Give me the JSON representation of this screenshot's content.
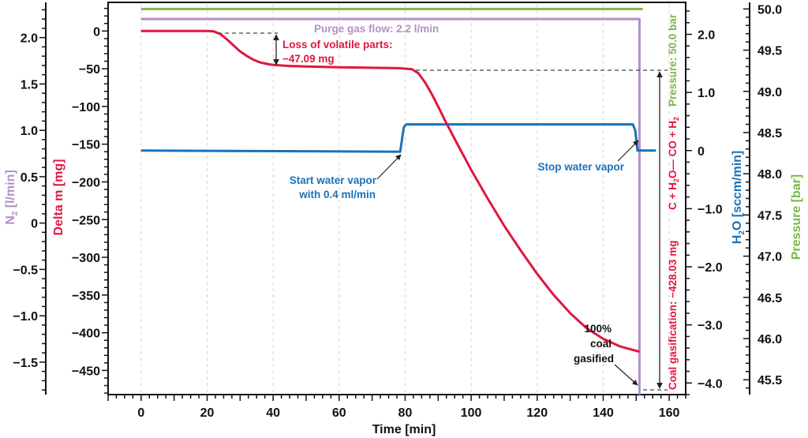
{
  "chart_data": {
    "type": "line",
    "title": "",
    "x": {
      "label": "Time [min]",
      "range": [
        -10,
        165
      ],
      "ticks": [
        0,
        20,
        40,
        60,
        80,
        100,
        120,
        140,
        160
      ],
      "tick_labels": [
        "0",
        "20",
        "40",
        "60",
        "80",
        "100",
        "120",
        "140",
        "160"
      ],
      "minor_step": 2.5
    },
    "y_axes": {
      "n2": {
        "label_main": "N",
        "label_sub": "2",
        "label_rest": " [l/min]",
        "range": [
          -1.85,
          2.38
        ],
        "ticks": [
          2.0,
          1.5,
          1.0,
          0.5,
          0,
          -0.5,
          -1.0,
          -1.5
        ],
        "tick_labels": [
          "2.0",
          "1.5",
          "1.0",
          "0.5",
          "0",
          "−0.5",
          "−1.0",
          "−1.5"
        ],
        "color": "#b48fc8"
      },
      "delta_m": {
        "label": "Delta m [mg]",
        "range": [
          -482,
          38
        ],
        "ticks": [
          0,
          -50,
          -100,
          -150,
          -200,
          -250,
          -300,
          -350,
          -400,
          -450
        ],
        "tick_labels": [
          "0",
          "−50",
          "−100",
          "−150",
          "−200",
          "−250",
          "−300",
          "−350",
          "−400",
          "−450"
        ],
        "color": "#e0173f"
      },
      "h2o": {
        "label_main": "H",
        "label_sub": "2",
        "label_rest": "O [sccm/min]",
        "range": [
          -4.2,
          2.55
        ],
        "ticks": [
          2.0,
          1.0,
          0,
          -1.0,
          -2.0,
          -3.0,
          -4.0
        ],
        "tick_labels": [
          "2.0",
          "1.0",
          "0",
          "−1.0",
          "−2.0",
          "−3.0",
          "−4.0"
        ],
        "color": "#1b72b8"
      },
      "pressure": {
        "label": "Pressure [bar]",
        "range": [
          45.32,
          50.08
        ],
        "ticks": [
          50.0,
          49.5,
          49.0,
          48.5,
          48.0,
          47.5,
          47.0,
          46.5,
          46.0,
          45.5
        ],
        "tick_labels": [
          "50.0",
          "49.5",
          "49.0",
          "48.5",
          "48.0",
          "47.5",
          "47.0",
          "46.5",
          "46.0",
          "45.5"
        ],
        "color": "#7ab648"
      }
    },
    "series": [
      {
        "name": "Pressure",
        "axis": "pressure",
        "color": "#7ab648",
        "points": [
          [
            0,
            50.0
          ],
          [
            152,
            50.0
          ]
        ]
      },
      {
        "name": "N2 purge gas flow",
        "axis": "n2",
        "color": "#b48fc8",
        "points": [
          [
            0,
            2.2
          ],
          [
            151,
            2.2
          ],
          [
            151,
            -1.85
          ]
        ]
      },
      {
        "name": "Delta m",
        "axis": "delta_m",
        "color": "#e0173f",
        "points": [
          [
            0,
            0
          ],
          [
            10,
            0
          ],
          [
            20,
            0
          ],
          [
            22,
            -0.5
          ],
          [
            24,
            -4
          ],
          [
            26,
            -11
          ],
          [
            28,
            -19
          ],
          [
            30,
            -27
          ],
          [
            32,
            -33
          ],
          [
            34,
            -38
          ],
          [
            36,
            -41.5
          ],
          [
            38,
            -43.5
          ],
          [
            40,
            -45
          ],
          [
            45,
            -46.3
          ],
          [
            50,
            -47
          ],
          [
            60,
            -48
          ],
          [
            70,
            -48.7
          ],
          [
            78,
            -49.3
          ],
          [
            82,
            -50.5
          ],
          [
            84,
            -56
          ],
          [
            86,
            -68
          ],
          [
            88,
            -83
          ],
          [
            90,
            -100
          ],
          [
            92,
            -118
          ],
          [
            95,
            -143
          ],
          [
            100,
            -184
          ],
          [
            105,
            -222
          ],
          [
            110,
            -258
          ],
          [
            115,
            -291
          ],
          [
            120,
            -322
          ],
          [
            125,
            -350
          ],
          [
            130,
            -374
          ],
          [
            135,
            -394
          ],
          [
            140,
            -408
          ],
          [
            145,
            -418
          ],
          [
            150,
            -424
          ],
          [
            151,
            -425
          ]
        ]
      },
      {
        "name": "H2O",
        "axis": "h2o",
        "color": "#1b72b8",
        "points": [
          [
            0,
            0
          ],
          [
            78.5,
            -0.02
          ],
          [
            79.2,
            0.25
          ],
          [
            79.6,
            0.4
          ],
          [
            80.3,
            0.45
          ],
          [
            149,
            0.45
          ],
          [
            149.7,
            0.35
          ],
          [
            150.4,
            0
          ],
          [
            156,
            0
          ]
        ]
      }
    ],
    "annotations": {
      "purge": "Purge gas flow: 2.2 l/min",
      "volatile_line1": "Loss of volatile parts:",
      "volatile_line2": "−47.09 mg",
      "start_line1": "Start water vapor",
      "start_line2": "with 0.4 ml/min",
      "stop": "Stop water vapor",
      "gasified_line1": "100%",
      "gasified_line2": "coal",
      "gasified_line3": "gasified",
      "coal_gasification": "Coal gasification: −428.03 mg",
      "reaction_a": "C + H",
      "reaction_sub1": "2",
      "reaction_b": "O— CO + H",
      "reaction_sub2": "2",
      "pressure": "Pressure: 50.0 bar"
    },
    "grid": "vertical-dashed"
  }
}
